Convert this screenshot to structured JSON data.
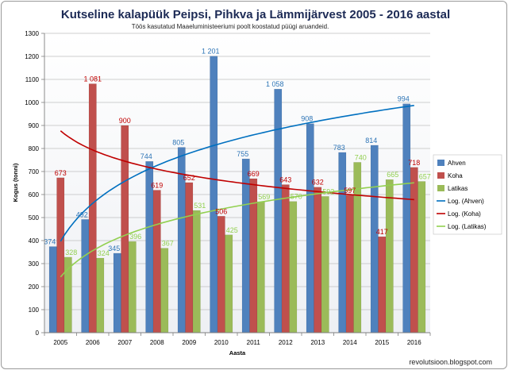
{
  "chart_data": {
    "type": "bar",
    "title": "Kutseline kalapüük Peipsi, Pihkva  ja Lämmijärvest 2005 - 2016 aastal",
    "subtitle": "Töös kasutatud Maaeluministeeriumi  poolt koostatud püügi aruandeid.",
    "xlabel": "Aasta",
    "ylabel": "Kogus (tonni)",
    "ylim": [
      0,
      1300
    ],
    "ytick_step": 100,
    "yticks": [
      "0",
      "100",
      "200",
      "300",
      "400",
      "500",
      "600",
      "700",
      "800",
      "900",
      "1000",
      "1100",
      "1200",
      "1300"
    ],
    "categories": [
      "2005",
      "2006",
      "2007",
      "2008",
      "2009",
      "2010",
      "2011",
      "2012",
      "2013",
      "2014",
      "2015",
      "2016"
    ],
    "series": [
      {
        "name": "Ahven",
        "color": "#4f81bd",
        "label_color": "#2e75b6",
        "values": [
          374,
          492,
          345,
          744,
          805,
          1201,
          755,
          1058,
          908,
          783,
          814,
          994
        ],
        "labels": [
          "374",
          "492",
          "345",
          "744",
          "805",
          "1 201",
          "755",
          "1 058",
          "908",
          "783",
          "814",
          "994"
        ]
      },
      {
        "name": "Koha",
        "color": "#c0504d",
        "label_color": "#c00000",
        "values": [
          673,
          1081,
          900,
          619,
          652,
          506,
          669,
          643,
          632,
          597,
          417,
          718
        ],
        "labels": [
          "673",
          "1 081",
          "900",
          "619",
          "652",
          "506",
          "669",
          "643",
          "632",
          "597",
          "417",
          "718"
        ]
      },
      {
        "name": "Latikas",
        "color": "#9bbb59",
        "label_color": "#92d050",
        "values": [
          328,
          324,
          396,
          367,
          531,
          425,
          569,
          570,
          592,
          740,
          665,
          657
        ],
        "labels": [
          "328",
          "324",
          "396",
          "367",
          "531",
          "425",
          "569",
          "570",
          "592",
          "740",
          "665",
          "657"
        ]
      }
    ],
    "trendlines": [
      {
        "name": "Log. (Ahven)",
        "of": "Ahven",
        "type": "logarithmic",
        "color": "#0070c0",
        "start": 397,
        "end": 987
      },
      {
        "name": "Log. (Koha)",
        "of": "Koha",
        "type": "logarithmic",
        "color": "#c00000",
        "start": 877,
        "end": 578
      },
      {
        "name": "Log. (Latikas)",
        "of": "Latikas",
        "type": "logarithmic",
        "color": "#92d050",
        "start": 242,
        "end": 651
      }
    ],
    "legend_position": "right",
    "grid": true
  },
  "footer": "revolutsioon.blogspot.com"
}
